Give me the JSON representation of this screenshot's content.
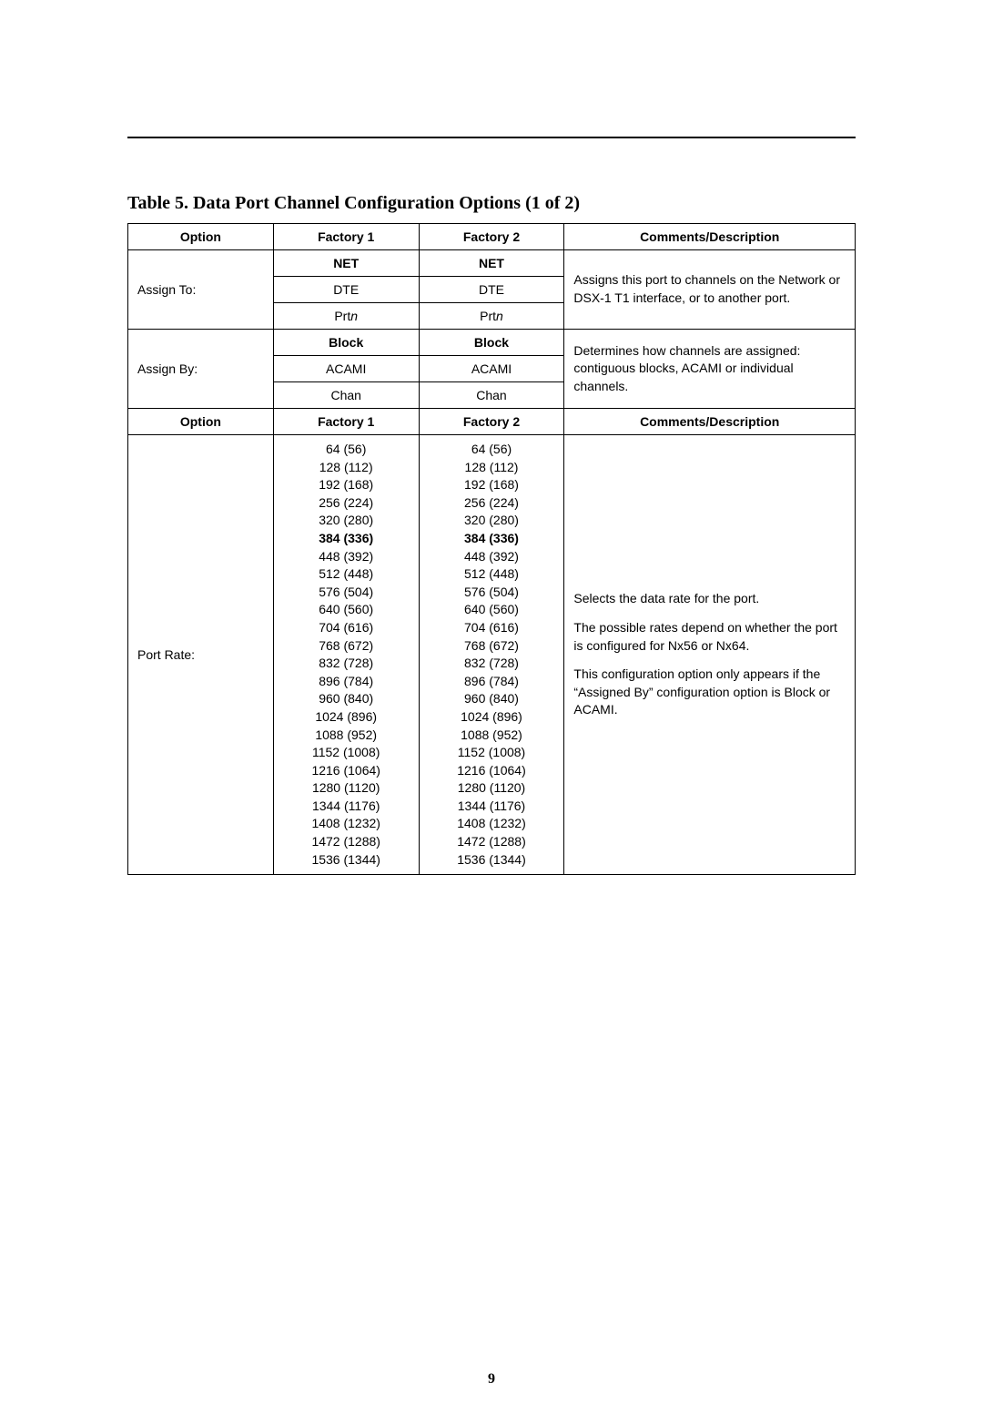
{
  "page_number": "9",
  "table_title": "Table 5.   Data Port Channel Configuration Options (1 of 2)",
  "headers": {
    "option": "Option",
    "factory1": "Factory 1",
    "factory2": "Factory 2",
    "comments": "Comments/Description"
  },
  "assign_to": {
    "label": "Assign To:",
    "rows": [
      {
        "f1": "NET",
        "f2": "NET",
        "bold": true
      },
      {
        "f1": "DTE",
        "f2": "DTE",
        "bold": false
      },
      {
        "f1_prefix": "Prt",
        "f1_suffix": "n",
        "f2_prefix": "Prt",
        "f2_suffix": "n",
        "italic_suffix": true
      }
    ],
    "description": "Assigns this port to channels on the Network or DSX-1 T1 interface, or to another port."
  },
  "assign_by": {
    "label": "Assign By:",
    "rows": [
      {
        "f1": "Block",
        "f2": "Block",
        "bold": true
      },
      {
        "f1": "ACAMI",
        "f2": "ACAMI",
        "bold": false
      },
      {
        "f1": "Chan",
        "f2": "Chan",
        "bold": false
      }
    ],
    "description": "Determines how channels are assigned: contiguous blocks, ACAMI or individual channels."
  },
  "port_rate": {
    "label": "Port Rate:",
    "bold_rate": "384 (336)",
    "rates": [
      "64 (56)",
      "128 (112)",
      "192 (168)",
      "256 (224)",
      "320 (280)",
      "384 (336)",
      "448 (392)",
      "512 (448)",
      "576 (504)",
      "640 (560)",
      "704 (616)",
      "768 (672)",
      "832 (728)",
      "896 (784)",
      "960 (840)",
      "1024 (896)",
      "1088 (952)",
      "1152 (1008)",
      "1216 (1064)",
      "1280 (1120)",
      "1344 (1176)",
      "1408 (1232)",
      "1472 (1288)",
      "1536 (1344)"
    ],
    "desc_p1": "Selects the data rate for the port.",
    "desc_p2": "The possible rates depend on whether the port is configured for Nx56 or Nx64.",
    "desc_p3": "This configuration option only appears if the “Assigned By” configuration option is Block or ACAMI."
  }
}
